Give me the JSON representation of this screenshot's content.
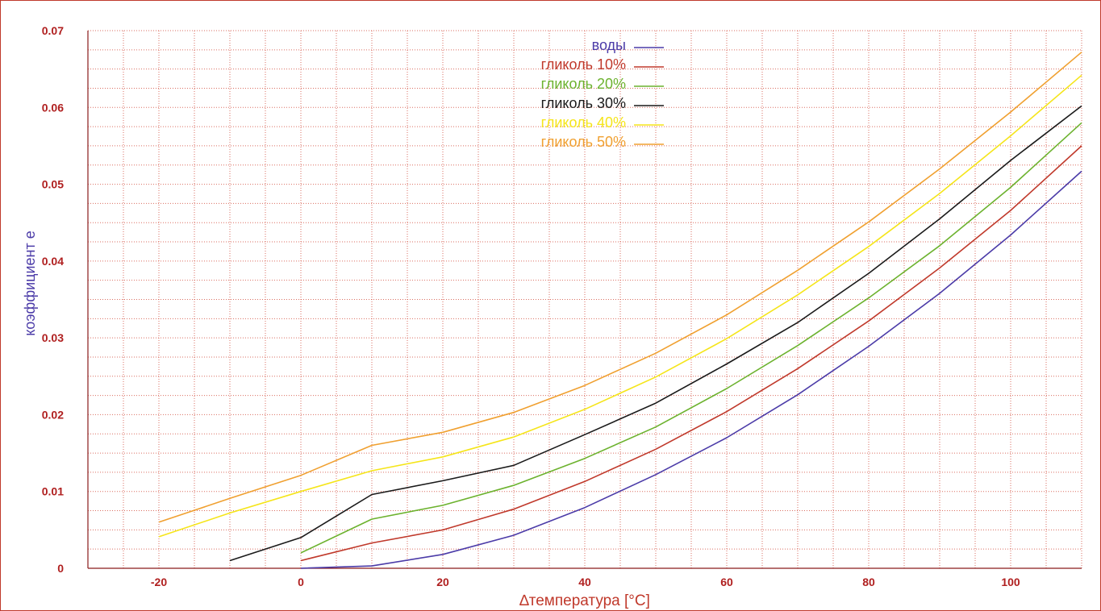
{
  "chart_data": {
    "type": "line",
    "xlabel": "∆температура [°C]",
    "ylabel": "коэффициент e",
    "xlim": [
      -30,
      110
    ],
    "ylim": [
      0,
      0.07
    ],
    "x_ticks": [
      "-20",
      "0",
      "20",
      "40",
      "60",
      "80",
      "100"
    ],
    "y_ticks": [
      "0",
      "0.01",
      "0.02",
      "0.03",
      "0.04",
      "0.05",
      "0.06",
      "0.07"
    ],
    "grid": true,
    "legend_position": "top-center",
    "series": [
      {
        "name": "воды",
        "color": "#4b3ba8",
        "x": [
          0,
          10,
          20,
          30,
          40,
          50,
          60,
          70,
          80,
          90,
          100,
          110
        ],
        "y": [
          0.0,
          0.0003,
          0.0018,
          0.0043,
          0.0079,
          0.0122,
          0.017,
          0.0226,
          0.0289,
          0.0358,
          0.0434,
          0.0517
        ]
      },
      {
        "name": "гликоль 10%",
        "color": "#c0392b",
        "x": [
          0,
          10,
          20,
          30,
          40,
          50,
          60,
          70,
          80,
          90,
          100,
          110
        ],
        "y": [
          0.001,
          0.0033,
          0.005,
          0.0077,
          0.0113,
          0.0155,
          0.0204,
          0.026,
          0.0322,
          0.0391,
          0.0466,
          0.055
        ]
      },
      {
        "name": "гликоль 20%",
        "color": "#6cb22e",
        "x": [
          0,
          10,
          20,
          30,
          40,
          50,
          60,
          70,
          80,
          90,
          100,
          110
        ],
        "y": [
          0.002,
          0.0064,
          0.0082,
          0.0108,
          0.0143,
          0.0184,
          0.0234,
          0.029,
          0.0352,
          0.042,
          0.0496,
          0.058
        ]
      },
      {
        "name": "гликоль 30%",
        "color": "#1a1a1a",
        "x": [
          -10,
          0,
          10,
          20,
          30,
          40,
          50,
          60,
          70,
          80,
          90,
          100,
          110
        ],
        "y": [
          0.001,
          0.004,
          0.0096,
          0.0114,
          0.0134,
          0.0174,
          0.0215,
          0.0266,
          0.032,
          0.0384,
          0.0455,
          0.0531,
          0.0602
        ]
      },
      {
        "name": "гликоль 40%",
        "color": "#f5e51a",
        "x": [
          -20,
          -10,
          0,
          10,
          20,
          30,
          40,
          50,
          60,
          70,
          80,
          90,
          100,
          110
        ],
        "y": [
          0.0041,
          0.0072,
          0.01,
          0.0127,
          0.0145,
          0.0171,
          0.0207,
          0.0249,
          0.0299,
          0.0356,
          0.0419,
          0.0488,
          0.0563,
          0.0642
        ]
      },
      {
        "name": "гликоль 50%",
        "color": "#f0a030",
        "x": [
          -20,
          -10,
          0,
          10,
          20,
          30,
          40,
          50,
          60,
          70,
          80,
          90,
          100,
          110
        ],
        "y": [
          0.006,
          0.0091,
          0.0121,
          0.016,
          0.0177,
          0.0203,
          0.0238,
          0.028,
          0.033,
          0.0388,
          0.0451,
          0.052,
          0.0594,
          0.0672
        ]
      }
    ]
  }
}
